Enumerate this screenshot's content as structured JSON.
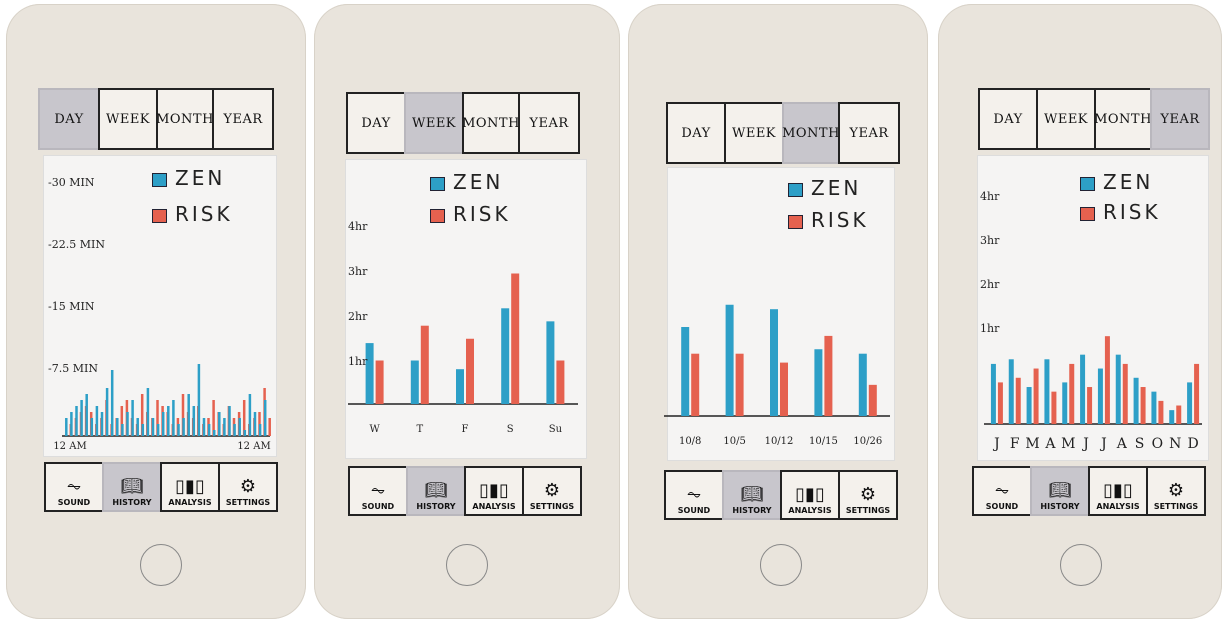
{
  "colors": {
    "zen": "#2d9fc7",
    "risk": "#e5614f"
  },
  "panels": [
    {
      "tabs": [
        "DAY",
        "WEEK",
        "MONTH",
        "YEAR"
      ],
      "active_tab": "DAY",
      "legend": {
        "zen": "ZEN",
        "risk": "RISK"
      },
      "y_ticks": [
        "-30 MIN",
        "-22.5 MIN",
        "-15 MIN",
        "-7.5 MIN"
      ],
      "x_ticks": [
        "12 AM",
        "12 AM"
      ],
      "nav": [
        "SOUND",
        "HISTORY",
        "ANALYSIS",
        "SETTINGS"
      ],
      "active_nav": "HISTORY"
    },
    {
      "tabs": [
        "DAY",
        "WEEK",
        "MONTH",
        "YEAR"
      ],
      "active_tab": "WEEK",
      "legend": {
        "zen": "ZEN",
        "risk": "RISK"
      },
      "y_ticks": [
        "4hr",
        "3hr",
        "2hr",
        "1hr"
      ],
      "x_ticks": [
        "W",
        "T",
        "F",
        "S",
        "Su"
      ],
      "nav": [
        "SOUND",
        "HISTORY",
        "ANALYSIS",
        "SETTINGS"
      ],
      "active_nav": "HISTORY"
    },
    {
      "tabs": [
        "DAY",
        "WEEK",
        "MONTH",
        "YEAR"
      ],
      "active_tab": "MONTH",
      "legend": {
        "zen": "ZEN",
        "risk": "RISK"
      },
      "y_ticks": [],
      "x_ticks": [
        "10/8",
        "10/5",
        "10/12",
        "10/15",
        "10/26"
      ],
      "nav": [
        "SOUND",
        "HISTORY",
        "ANALYSIS",
        "SETTINGS"
      ],
      "active_nav": "HISTORY"
    },
    {
      "tabs": [
        "DAY",
        "WEEK",
        "MONTH",
        "YEAR"
      ],
      "active_tab": "YEAR",
      "legend": {
        "zen": "ZEN",
        "risk": "RISK"
      },
      "y_ticks": [
        "4hr",
        "3hr",
        "2hr",
        "1hr"
      ],
      "x_ticks": [
        "J",
        "F",
        "M",
        "A",
        "M",
        "J",
        "J",
        "A",
        "S",
        "O",
        "N",
        "D"
      ],
      "nav": [
        "SOUND",
        "HISTORY",
        "ANALYSIS",
        "SETTINGS"
      ],
      "active_nav": "HISTORY"
    }
  ],
  "chart_data": [
    {
      "type": "bar",
      "x": [
        1,
        2,
        3,
        4,
        5,
        6,
        7,
        8,
        9,
        10,
        11,
        12,
        13,
        14,
        15,
        16,
        17,
        18,
        19,
        20,
        21,
        22,
        23,
        24,
        25,
        26,
        27,
        28,
        29,
        30,
        31,
        32,
        33,
        34,
        35,
        36,
        37,
        38,
        39,
        40
      ],
      "series": [
        {
          "name": "ZEN",
          "values": [
            3,
            4,
            5,
            6,
            7,
            3,
            5,
            4,
            8,
            11,
            3,
            2,
            4,
            6,
            3,
            2,
            8,
            3,
            2,
            4,
            5,
            6,
            2,
            3,
            7,
            5,
            12,
            3,
            2,
            1,
            4,
            3,
            5,
            2,
            3,
            1,
            7,
            4,
            2,
            6
          ]
        },
        {
          "name": "RISK",
          "values": [
            2,
            3,
            4,
            5,
            4,
            2,
            3,
            6,
            2,
            3,
            5,
            6,
            3,
            2,
            7,
            4,
            3,
            6,
            5,
            4,
            2,
            3,
            7,
            4,
            3,
            5,
            2,
            3,
            6,
            4,
            2,
            5,
            3,
            4,
            6,
            2,
            3,
            4,
            8,
            3
          ]
        }
      ],
      "ylim": [
        0,
        30
      ]
    },
    {
      "type": "bar",
      "categories": [
        "W",
        "T",
        "F",
        "S",
        "Su"
      ],
      "series": [
        {
          "name": "ZEN",
          "values": [
            1.4,
            1.0,
            0.8,
            2.2,
            1.9
          ]
        },
        {
          "name": "RISK",
          "values": [
            1.0,
            1.8,
            1.5,
            3.0,
            1.0
          ]
        }
      ],
      "ylim": [
        0,
        4
      ]
    },
    {
      "type": "bar",
      "categories": [
        "10/8",
        "10/5",
        "10/12",
        "10/15",
        "10/26"
      ],
      "series": [
        {
          "name": "ZEN",
          "values": [
            2.0,
            2.5,
            2.4,
            1.5,
            1.4
          ]
        },
        {
          "name": "RISK",
          "values": [
            1.4,
            1.4,
            1.2,
            1.8,
            0.7
          ]
        }
      ],
      "ylim": [
        0,
        4
      ]
    },
    {
      "type": "bar",
      "categories": [
        "J",
        "F",
        "M",
        "A",
        "M",
        "J",
        "J",
        "A",
        "S",
        "O",
        "N",
        "D"
      ],
      "series": [
        {
          "name": "ZEN",
          "values": [
            1.3,
            1.4,
            0.8,
            1.4,
            0.9,
            1.5,
            1.2,
            1.5,
            1.0,
            0.7,
            0.3,
            0.9
          ]
        },
        {
          "name": "RISK",
          "values": [
            0.9,
            1.0,
            1.2,
            0.7,
            1.3,
            0.8,
            1.9,
            1.3,
            0.8,
            0.5,
            0.4,
            1.3
          ]
        }
      ],
      "ylim": [
        0,
        4.5
      ]
    }
  ]
}
